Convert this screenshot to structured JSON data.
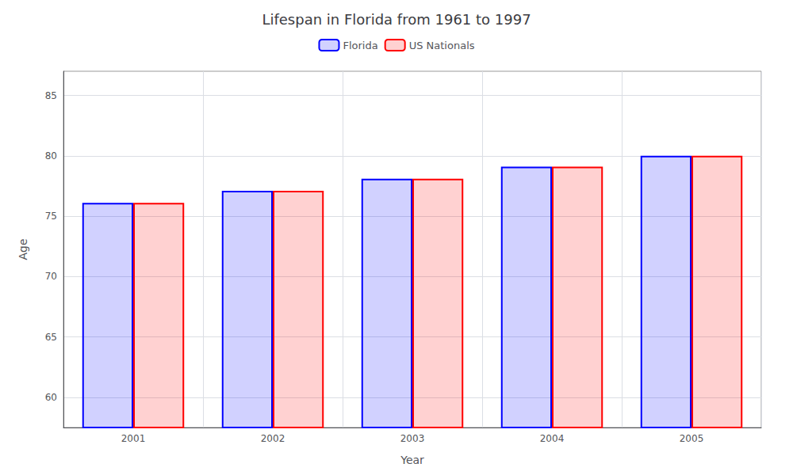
{
  "chart_data": {
    "type": "bar",
    "title": "Lifespan in Florida from 1961 to 1997",
    "xlabel": "Year",
    "ylabel": "Age",
    "categories": [
      "2001",
      "2002",
      "2003",
      "2004",
      "2005"
    ],
    "series": [
      {
        "name": "Florida",
        "color": "#0000ff",
        "values": [
          76.1,
          77.1,
          78.1,
          79.1,
          80.0
        ]
      },
      {
        "name": "US Nationals",
        "color": "#ff0000",
        "values": [
          76.1,
          77.1,
          78.1,
          79.1,
          80.0
        ]
      }
    ],
    "ylim": [
      57.5,
      87
    ],
    "yticks": [
      60,
      65,
      70,
      75,
      80,
      85
    ],
    "grid": true,
    "legend": "top"
  }
}
